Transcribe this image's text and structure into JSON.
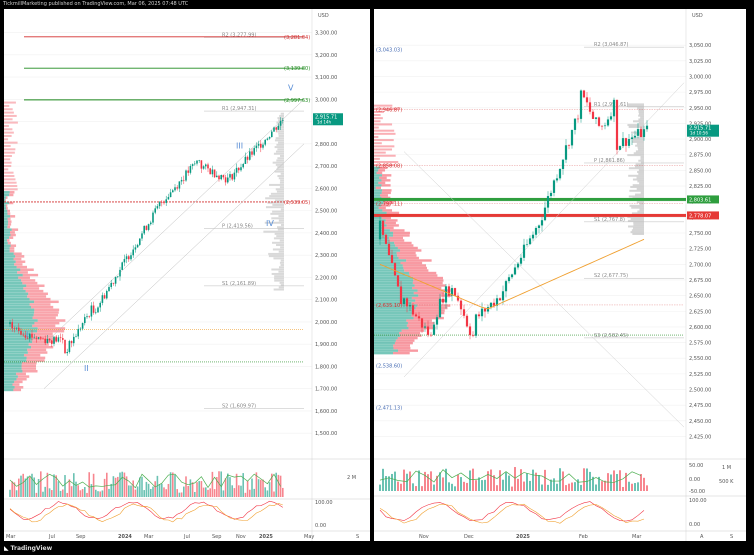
{
  "header": {
    "publisher_line": "TickmillMarketing published on TradingView.com, Mar 06, 2025 07:48 UTC"
  },
  "footer": {
    "brand": "TradingView"
  },
  "colors": {
    "bull": "#089981",
    "bear": "#f23645",
    "green_line": "#1e8a1e",
    "red_line": "#d32f2f",
    "blue_wave": "#5b8fd6",
    "orange_ma": "#f0a030",
    "grid": "#f0f0f0"
  },
  "left_chart": {
    "currency": "USD",
    "y_ticks": [
      "3,300.00",
      "3,200.00",
      "3,100.00",
      "3,000.00",
      "2,900.00",
      "2,800.00",
      "2,700.00",
      "2,600.00",
      "2,500.00",
      "2,400.00",
      "2,300.00",
      "2,200.00",
      "2,100.00",
      "2,000.00",
      "1,900.00",
      "1,800.00",
      "1,700.00",
      "1,600.00",
      "1,500.00"
    ],
    "x_ticks": [
      "Mar",
      "Jul",
      "Sep",
      "2024",
      "Mar",
      "Jul",
      "Sep",
      "Nov",
      "2025",
      "May",
      "S"
    ],
    "levels": [
      {
        "label": "R2 (3,277.99)",
        "value": 3277.99,
        "kind": "pivot"
      },
      {
        "label": "(3,281.04)",
        "value": 3281.04,
        "kind": "red"
      },
      {
        "label": "(3,139.80)",
        "value": 3139.8,
        "kind": "green"
      },
      {
        "label": "(2,997.63)",
        "value": 2997.63,
        "kind": "green"
      },
      {
        "label": "R1 (2,947.31)",
        "value": 2947.31,
        "kind": "pivot"
      },
      {
        "label": "(2,539.05)",
        "value": 2539.05,
        "kind": "red_dashed"
      },
      {
        "label": "P (2,419.56)",
        "value": 2419.56,
        "kind": "pivot"
      },
      {
        "label": "S1 (2,161.89)",
        "value": 2161.89,
        "kind": "pivot"
      },
      {
        "label": "S2 (1,609.97)",
        "value": 1609.97,
        "kind": "pivot"
      }
    ],
    "waves": [
      "I",
      "II",
      "III",
      "IV",
      "V"
    ],
    "price_label": "2,915.71",
    "price_sub": "1d 14h",
    "indicator_label": "2 M",
    "osc_ticks": [
      "100.00",
      "0.00"
    ]
  },
  "right_chart": {
    "currency": "USD",
    "y_ticks": [
      "3,050.00",
      "3,025.00",
      "3,000.00",
      "2,975.00",
      "2,950.00",
      "2,925.00",
      "2,900.00",
      "2,875.00",
      "2,850.00",
      "2,825.00",
      "2,800.00",
      "2,775.00",
      "2,750.00",
      "2,725.00",
      "2,700.00",
      "2,675.00",
      "2,650.00",
      "2,625.00",
      "2,600.00",
      "2,575.00",
      "2,550.00",
      "2,525.00",
      "2,500.00",
      "2,475.00",
      "2,450.00",
      "2,425.00"
    ],
    "x_ticks": [
      "Nov",
      "Dec",
      "2025",
      "Feb",
      "Mar",
      "A",
      "S"
    ],
    "levels": [
      {
        "label": "(3,043.03)",
        "value": 3043.03,
        "kind": "blue_text"
      },
      {
        "label": "R2 (3,046.87)",
        "value": 3046.87,
        "kind": "pivot"
      },
      {
        "label": "(2,946.87)",
        "value": 2946.87,
        "kind": "red_text"
      },
      {
        "label": "R1 (2,951.61)",
        "value": 2951.61,
        "kind": "pivot"
      },
      {
        "label": "P (2,861.86)",
        "value": 2861.86,
        "kind": "pivot"
      },
      {
        "label": "(2,858.08)",
        "value": 2858.08,
        "kind": "red_text"
      },
      {
        "label": "(2,797.11)",
        "value": 2797.11,
        "kind": "red_text"
      },
      {
        "label": "S1 (2,767.8)",
        "value": 2767.8,
        "kind": "pivot"
      },
      {
        "label": "S2 (2,677.75)",
        "value": 2677.75,
        "kind": "pivot"
      },
      {
        "label": "(2,635.10)",
        "value": 2635.1,
        "kind": "red_text"
      },
      {
        "label": "S3 (2,582.45)",
        "value": 2582.45,
        "kind": "pivot"
      },
      {
        "label": "(2,538.60)",
        "value": 2538.6,
        "kind": "blue_text"
      },
      {
        "label": "(2,471.13)",
        "value": 2471.13,
        "kind": "blue_text"
      }
    ],
    "price_label": "2,915.71",
    "price_sub": "1d 10:56",
    "green_level": "2,803.61",
    "red_level": "2,778.07",
    "osc_ticks": [
      "50.00",
      "0.00",
      "-50.00",
      "100.00",
      "0.00"
    ],
    "volume_labels": [
      "1 M",
      "500 K"
    ]
  }
}
